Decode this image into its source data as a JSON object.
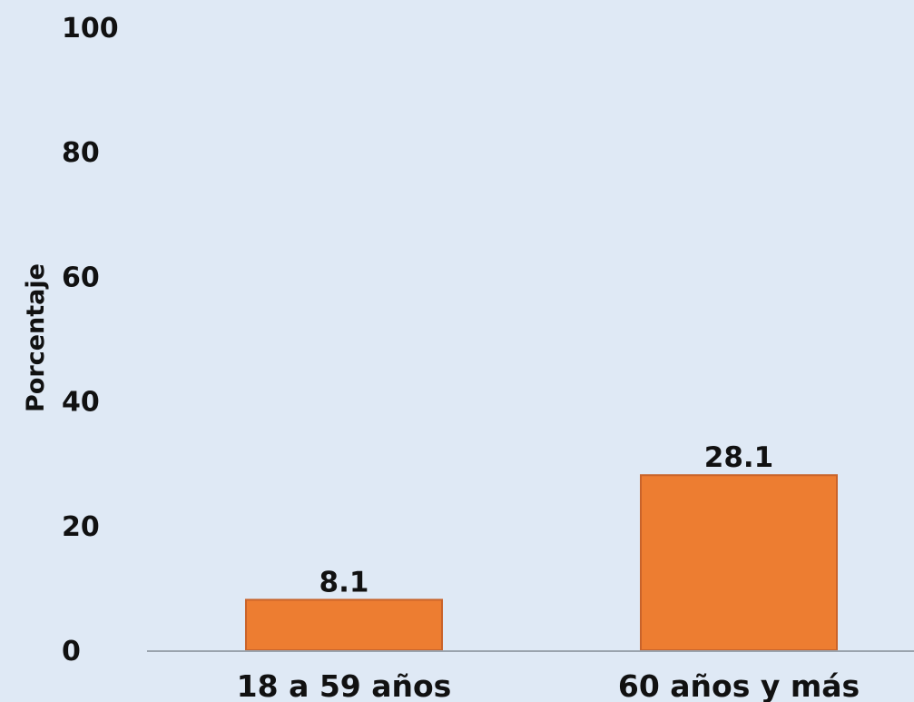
{
  "chart_data": {
    "type": "bar",
    "categories": [
      "18 a 59 años",
      "60 años y más"
    ],
    "values": [
      8.1,
      28.1
    ],
    "value_labels": [
      "8.1",
      "28.1"
    ],
    "ylabel": "Porcentaje",
    "xlabel": "",
    "ylim": [
      0,
      100
    ],
    "yticks": [
      0,
      20,
      40,
      60,
      80,
      100
    ],
    "ytick_labels": [
      "0",
      "20",
      "40",
      "60",
      "80",
      "100"
    ],
    "grid": false,
    "legend": "none"
  },
  "colors": {
    "background": "#dfe9f5",
    "bar": "#ed7d31",
    "bar_border": "#c9632a",
    "axis_line": "#9aa3ad",
    "text": "#111111"
  }
}
